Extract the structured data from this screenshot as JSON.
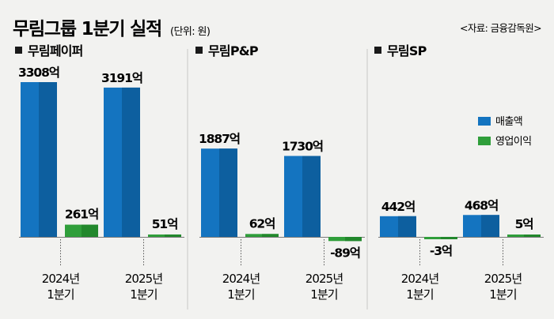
{
  "header": {
    "title": "무림그룹 1분기 실적",
    "unit": "(단위: 원)",
    "source": "<자료: 금융감독원>"
  },
  "colors": {
    "revenue": "#1474c0",
    "revenue_dark": "#0d5f9f",
    "op_income": "#2f9e3a",
    "op_income_dark": "#22882c",
    "background": "#f2f2f0"
  },
  "legend": [
    {
      "label": "매출액",
      "color": "#1474c0"
    },
    {
      "label": "영업이익",
      "color": "#2f9e3a"
    }
  ],
  "chart_data": [
    {
      "type": "bar",
      "title": "무림페이퍼",
      "categories": [
        "2024년\n1분기",
        "2025년\n1분기"
      ],
      "series": [
        {
          "name": "매출액",
          "values": [
            3308,
            3191
          ],
          "labels": [
            "3308억",
            "3191억"
          ]
        },
        {
          "name": "영업이익",
          "values": [
            261,
            51
          ],
          "labels": [
            "261억",
            "51억"
          ]
        }
      ]
    },
    {
      "type": "bar",
      "title": "무림P&P",
      "categories": [
        "2024년\n1분기",
        "2025년\n1분기"
      ],
      "series": [
        {
          "name": "매출액",
          "values": [
            1887,
            1730
          ],
          "labels": [
            "1887억",
            "1730억"
          ]
        },
        {
          "name": "영업이익",
          "values": [
            62,
            -89
          ],
          "labels": [
            "62억",
            "-89억"
          ]
        }
      ]
    },
    {
      "type": "bar",
      "title": "무림SP",
      "categories": [
        "2024년\n1분기",
        "2025년\n1분기"
      ],
      "series": [
        {
          "name": "매출액",
          "values": [
            442,
            468
          ],
          "labels": [
            "442억",
            "468억"
          ]
        },
        {
          "name": "영업이익",
          "values": [
            -3,
            5
          ],
          "labels": [
            "-3억",
            "5억"
          ]
        }
      ]
    }
  ]
}
